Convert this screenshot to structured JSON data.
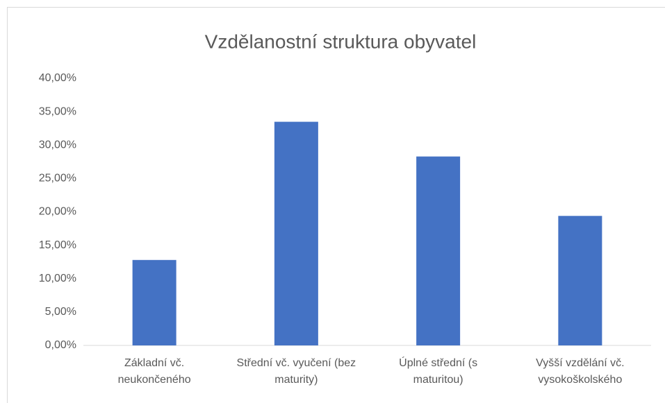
{
  "chart_data": {
    "type": "bar",
    "title": "Vzdělanostní struktura obyvatel",
    "categories": [
      "Základní vč. neukončeného",
      "Střední vč. vyučení (bez maturity)",
      "Úplné střední (s maturitou)",
      "Vyšší vzdělání vč. vysokoškolského"
    ],
    "values": [
      12.8,
      33.5,
      28.3,
      19.4
    ],
    "color": "#4472c4",
    "ylim": [
      0,
      40
    ],
    "yticks": [
      {
        "value": 0,
        "label": "0,00%"
      },
      {
        "value": 5,
        "label": "5,00%"
      },
      {
        "value": 10,
        "label": "10,00%"
      },
      {
        "value": 15,
        "label": "15,00%"
      },
      {
        "value": 20,
        "label": "20,00%"
      },
      {
        "value": 25,
        "label": "25,00%"
      },
      {
        "value": 30,
        "label": "30,00%"
      },
      {
        "value": 35,
        "label": "35,00%"
      },
      {
        "value": 40,
        "label": "40,00%"
      }
    ],
    "grid": false
  }
}
